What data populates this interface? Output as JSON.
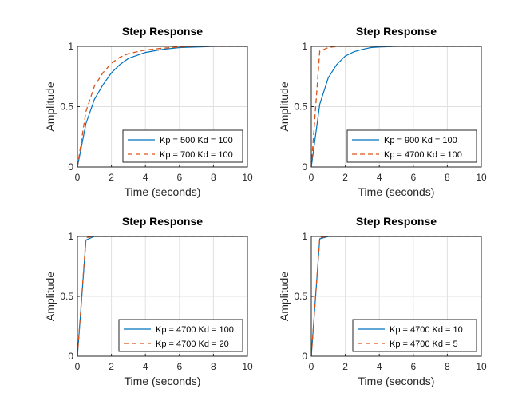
{
  "chart_data": [
    {
      "type": "line",
      "title": "Step Response",
      "xlabel": "Time (seconds)",
      "ylabel": "Amplitude",
      "xlim": [
        0,
        10
      ],
      "ylim": [
        0,
        1
      ],
      "xticks": [
        "0",
        "2",
        "4",
        "6",
        "8",
        "10"
      ],
      "yticks": [
        "0",
        "0.5",
        "1"
      ],
      "grid": true,
      "legend": "bottom-right",
      "series": [
        {
          "name": "Kp = 500 Kd = 100",
          "color": "#0072BD",
          "style": "solid",
          "x": [
            0,
            0.5,
            1,
            1.5,
            2,
            2.5,
            3,
            4,
            5,
            6,
            7,
            8,
            10
          ],
          "y": [
            0,
            0.36,
            0.56,
            0.68,
            0.78,
            0.85,
            0.9,
            0.95,
            0.975,
            0.99,
            0.995,
            1.0,
            1.0
          ]
        },
        {
          "name": "Kp = 700 Kd = 100",
          "color": "#D95319",
          "style": "dashed",
          "x": [
            0,
            0.5,
            1,
            1.5,
            2,
            2.5,
            3,
            4,
            5,
            6,
            7,
            8,
            10
          ],
          "y": [
            0,
            0.46,
            0.67,
            0.78,
            0.86,
            0.91,
            0.94,
            0.97,
            0.985,
            0.995,
            1.0,
            1.0,
            1.0
          ]
        }
      ]
    },
    {
      "type": "line",
      "title": "Step Response",
      "xlabel": "Time (seconds)",
      "ylabel": "Amplitude",
      "xlim": [
        0,
        10
      ],
      "ylim": [
        0,
        1
      ],
      "xticks": [
        "0",
        "2",
        "4",
        "6",
        "8",
        "10"
      ],
      "yticks": [
        "0",
        "0.5",
        "1"
      ],
      "grid": true,
      "legend": "bottom-right",
      "series": [
        {
          "name": "Kp = 900 Kd = 100",
          "color": "#0072BD",
          "style": "solid",
          "x": [
            0,
            0.5,
            1,
            1.5,
            2,
            2.5,
            3,
            3.5,
            4,
            5,
            6,
            10
          ],
          "y": [
            0,
            0.52,
            0.74,
            0.85,
            0.92,
            0.955,
            0.975,
            0.99,
            0.995,
            1.0,
            1.0,
            1.0
          ]
        },
        {
          "name": "Kp = 4700 Kd = 100",
          "color": "#D95319",
          "style": "dashed",
          "x": [
            0,
            0.5,
            1,
            1.5,
            2,
            10
          ],
          "y": [
            0,
            0.96,
            0.99,
            1.0,
            1.0,
            1.0
          ]
        }
      ]
    },
    {
      "type": "line",
      "title": "Step Response",
      "xlabel": "Time (seconds)",
      "ylabel": "Amplitude",
      "xlim": [
        0,
        10
      ],
      "ylim": [
        0,
        1
      ],
      "xticks": [
        "0",
        "2",
        "4",
        "6",
        "8",
        "10"
      ],
      "yticks": [
        "0",
        "0.5",
        "1"
      ],
      "grid": true,
      "legend": "bottom-right",
      "series": [
        {
          "name": "Kp = 4700 Kd = 100",
          "color": "#0072BD",
          "style": "solid",
          "x": [
            0,
            0.5,
            1,
            10
          ],
          "y": [
            0,
            0.97,
            1.0,
            1.0
          ]
        },
        {
          "name": "Kp = 4700 Kd = 20",
          "color": "#D95319",
          "style": "dashed",
          "x": [
            0,
            0.5,
            1,
            10
          ],
          "y": [
            0,
            0.99,
            1.0,
            1.0
          ]
        }
      ]
    },
    {
      "type": "line",
      "title": "Step Response",
      "xlabel": "Time (seconds)",
      "ylabel": "Amplitude",
      "xlim": [
        0,
        10
      ],
      "ylim": [
        0,
        1
      ],
      "xticks": [
        "0",
        "2",
        "4",
        "6",
        "8",
        "10"
      ],
      "yticks": [
        "0",
        "0.5",
        "1"
      ],
      "grid": true,
      "legend": "bottom-right",
      "series": [
        {
          "name": "Kp = 4700 Kd = 10",
          "color": "#0072BD",
          "style": "solid",
          "x": [
            0,
            0.5,
            1,
            10
          ],
          "y": [
            0,
            0.98,
            1.0,
            1.0
          ]
        },
        {
          "name": "Kp = 4700 Kd = 5",
          "color": "#D95319",
          "style": "dashed",
          "x": [
            0,
            0.5,
            1,
            10
          ],
          "y": [
            0,
            0.99,
            1.0,
            1.0
          ]
        }
      ]
    }
  ]
}
